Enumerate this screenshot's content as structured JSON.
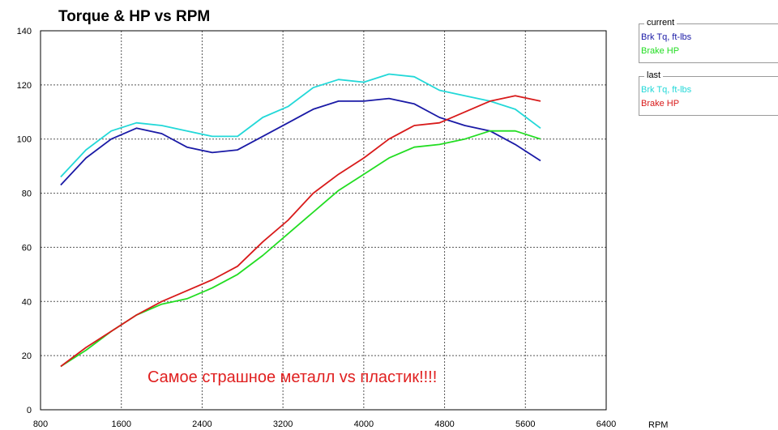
{
  "chart_data": {
    "type": "line",
    "title": "Torque & HP vs RPM",
    "xlabel": "RPM",
    "ylabel": "",
    "xlim": [
      800,
      6400
    ],
    "ylim": [
      0,
      140
    ],
    "x_ticks": [
      800,
      1600,
      2400,
      3200,
      4000,
      4800,
      5600,
      6400
    ],
    "y_ticks": [
      0,
      20,
      40,
      60,
      80,
      100,
      120,
      140
    ],
    "grid": true,
    "legend_position": "top-right",
    "annotation": {
      "text": "Самое страшное металл vs пластик!!!!",
      "color": "#e02020"
    },
    "legend_groups": [
      {
        "title": "current",
        "entries": [
          {
            "name": "Brk Tq, ft-lbs",
            "color": "#1a1aa6"
          },
          {
            "name": "Brake HP",
            "color": "#22dd22"
          }
        ]
      },
      {
        "title": "last",
        "entries": [
          {
            "name": "Brk Tq, ft-lbs",
            "color": "#22d8d8"
          },
          {
            "name": "Brake HP",
            "color": "#d81a1a"
          }
        ]
      }
    ],
    "series": [
      {
        "name": "Brk Tq, ft-lbs",
        "group": "last",
        "color": "#22d8d8",
        "x": [
          1000,
          1250,
          1500,
          1750,
          2000,
          2250,
          2500,
          2750,
          3000,
          3250,
          3500,
          3750,
          4000,
          4250,
          4500,
          4750,
          5000,
          5250,
          5500,
          5750
        ],
        "y": [
          86,
          96,
          103,
          106,
          105,
          103,
          101,
          101,
          108,
          112,
          119,
          122,
          121,
          124,
          123,
          118,
          116,
          114,
          111,
          104
        ]
      },
      {
        "name": "Brk Tq, ft-lbs",
        "group": "current",
        "color": "#1a1aa6",
        "x": [
          1000,
          1250,
          1500,
          1750,
          2000,
          2250,
          2500,
          2750,
          3000,
          3250,
          3500,
          3750,
          4000,
          4250,
          4500,
          4750,
          5000,
          5250,
          5500,
          5750
        ],
        "y": [
          83,
          93,
          100,
          104,
          102,
          97,
          95,
          96,
          101,
          106,
          111,
          114,
          114,
          115,
          113,
          108,
          105,
          103,
          98,
          92
        ]
      },
      {
        "name": "Brake HP",
        "group": "current",
        "color": "#22dd22",
        "x": [
          1000,
          1250,
          1500,
          1750,
          2000,
          2250,
          2500,
          2750,
          3000,
          3250,
          3500,
          3750,
          4000,
          4250,
          4500,
          4750,
          5000,
          5250,
          5500,
          5750
        ],
        "y": [
          16,
          22,
          29,
          35,
          39,
          41,
          45,
          50,
          57,
          65,
          73,
          81,
          87,
          93,
          97,
          98,
          100,
          103,
          103,
          100
        ]
      },
      {
        "name": "Brake HP",
        "group": "last",
        "color": "#d81a1a",
        "x": [
          1000,
          1250,
          1500,
          1750,
          2000,
          2250,
          2500,
          2750,
          3000,
          3250,
          3500,
          3750,
          4000,
          4250,
          4500,
          4750,
          5000,
          5250,
          5500,
          5750
        ],
        "y": [
          16,
          23,
          29,
          35,
          40,
          44,
          48,
          53,
          62,
          70,
          80,
          87,
          93,
          100,
          105,
          106,
          110,
          114,
          116,
          114
        ]
      }
    ]
  }
}
